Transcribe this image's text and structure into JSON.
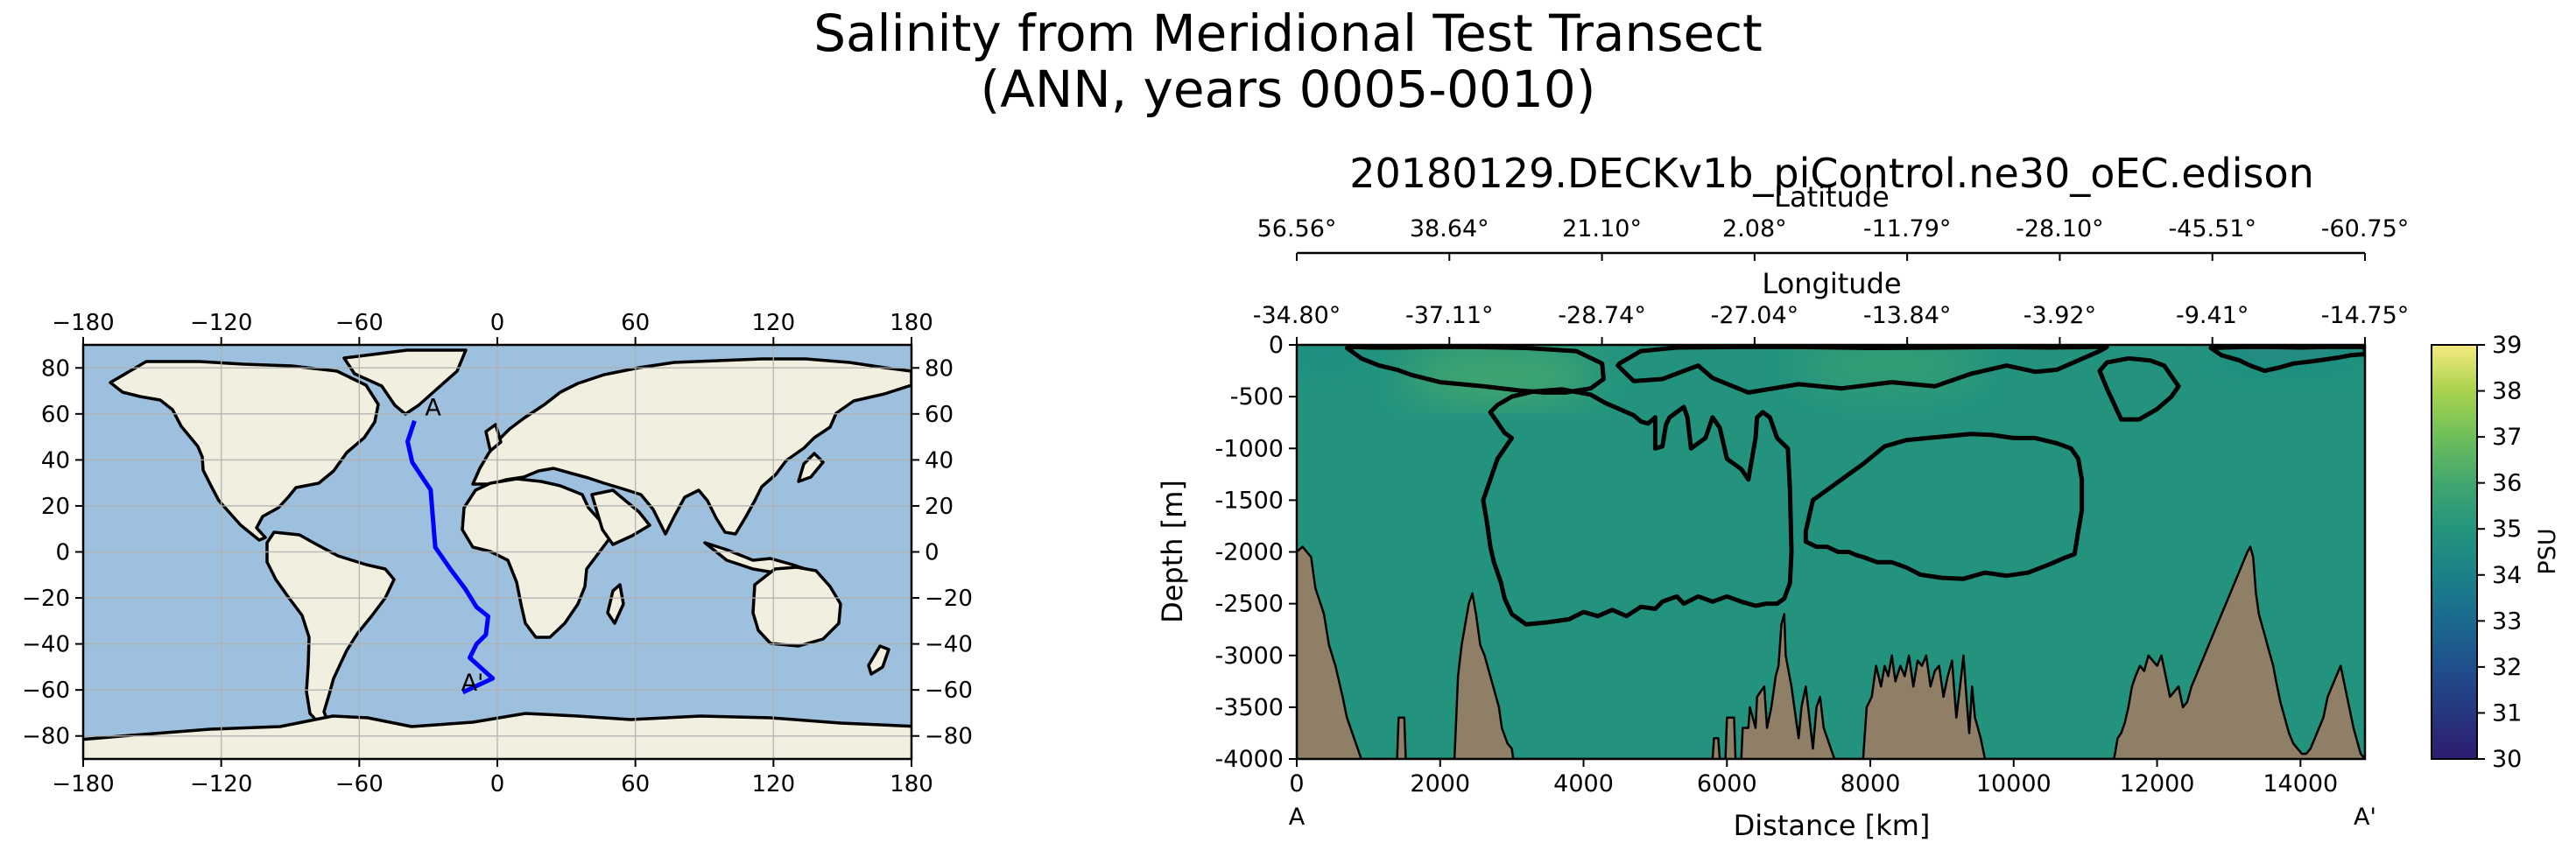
{
  "figure": {
    "title_line1": "Salinity from Meridional Test Transect",
    "title_line2": "(ANN, years 0005-0010)"
  },
  "chart_data": [
    {
      "type": "map",
      "title": "",
      "projection": "PlateCarree",
      "xlim": [
        -180,
        180
      ],
      "ylim": [
        -90,
        90
      ],
      "x_ticks": [
        "−180",
        "−120",
        "−60",
        "0",
        "60",
        "120",
        "180"
      ],
      "x_tick_values": [
        -180,
        -120,
        -60,
        0,
        60,
        120,
        180
      ],
      "y_ticks": [
        "−80",
        "−60",
        "−40",
        "−20",
        "0",
        "20",
        "40",
        "60",
        "80"
      ],
      "y_tick_values": [
        -80,
        -60,
        -40,
        -20,
        0,
        20,
        40,
        60,
        80
      ],
      "grid": true,
      "ocean_color": "#9cc0dd",
      "land_color": "#f1efdf",
      "coast_color": "#000000",
      "transect": {
        "color": "#0000ff",
        "start_label": "A",
        "end_label": "A'",
        "lon": [
          -36,
          -39,
          -37,
          -29,
          -27,
          -20,
          -14,
          -9,
          -4,
          -5,
          -9,
          -12,
          -2,
          -15
        ],
        "lat": [
          57,
          48,
          39,
          27,
          2,
          -8,
          -16,
          -24,
          -28,
          -36,
          -40,
          -46,
          -55,
          -61
        ]
      }
    },
    {
      "type": "heatmap",
      "title": "20180129.DECKv1b_piControl.ne30_oEC.edison",
      "xlabel": "Distance [km]",
      "ylabel": "Depth [m]",
      "xlim": [
        0,
        14900
      ],
      "ylim": [
        -4000,
        0
      ],
      "x_ticks": [
        0,
        2000,
        4000,
        6000,
        8000,
        10000,
        12000,
        14000
      ],
      "y_ticks": [
        0,
        -500,
        -1000,
        -1500,
        -2000,
        -2500,
        -3000,
        -3500,
        -4000
      ],
      "start_label": "A",
      "end_label": "A'",
      "top_axes": [
        {
          "label": "Latitude",
          "ticks": [
            "56.56°",
            "38.64°",
            "21.10°",
            "2.08°",
            "-11.79°",
            "-28.10°",
            "-45.51°",
            "-60.75°"
          ]
        },
        {
          "label": "Longitude",
          "ticks": [
            "-34.80°",
            "-37.11°",
            "-28.74°",
            "-27.04°",
            "-13.84°",
            "-3.92°",
            "-9.41°",
            "-14.75°"
          ]
        }
      ],
      "colorbar": {
        "label": "PSU",
        "min": 30,
        "max": 39,
        "ticks": [
          30,
          31,
          32,
          33,
          34,
          35,
          36,
          37,
          38,
          39
        ],
        "colors": [
          "#2d1c70",
          "#27367f",
          "#1f4f8c",
          "#1a6a8e",
          "#1c8189",
          "#24957d",
          "#42a66e",
          "#6ebf5b",
          "#a9d24d",
          "#f5ea7f"
        ]
      },
      "background_salinity": 34.9,
      "salinity_bands": [
        {
          "name": "upper-north-high",
          "value": 35.9,
          "x": [
            1500,
            4200
          ],
          "depth": [
            0,
            -600
          ]
        },
        {
          "name": "upper-south-high",
          "value": 35.7,
          "x": [
            7000,
            9500
          ],
          "depth": [
            0,
            -400
          ]
        },
        {
          "name": "surface-fresh-north",
          "value": 33.6,
          "x": [
            0,
            800
          ],
          "depth": [
            0,
            -60
          ]
        },
        {
          "name": "surface-fresh-south",
          "value": 33.2,
          "x": [
            12800,
            14900
          ],
          "depth": [
            0,
            -60
          ]
        }
      ],
      "contour_color": "#000000",
      "contour_level": 35.0,
      "bathymetry_color": "#8f7f66",
      "bathymetry": {
        "distance": [
          0,
          80,
          200,
          260,
          380,
          450,
          540,
          640,
          700,
          900,
          1400,
          1420,
          1500,
          1520,
          2200,
          2250,
          2300,
          2350,
          2400,
          2450,
          2500,
          2560,
          2620,
          2700,
          2760,
          2820,
          2860,
          2940,
          3000,
          3020,
          5800,
          5820,
          5880,
          5900,
          5980,
          6000,
          6100,
          6120,
          6200,
          6220,
          6300,
          6320,
          6400,
          6420,
          6520,
          6560,
          6620,
          6680,
          6720,
          6760,
          6800,
          6820,
          6900,
          6960,
          7000,
          7040,
          7100,
          7150,
          7200,
          7250,
          7300,
          7350,
          7400,
          7450,
          7500,
          7520,
          7900,
          7950,
          8020,
          8080,
          8150,
          8200,
          8250,
          8300,
          8350,
          8420,
          8480,
          8540,
          8600,
          8660,
          8720,
          8780,
          8840,
          8900,
          8960,
          9020,
          9080,
          9140,
          9200,
          9260,
          9300,
          9340,
          9380,
          9420,
          9460,
          9500,
          9540,
          9600,
          11400,
          11450,
          11500,
          11550,
          11600,
          11650,
          11700,
          11760,
          11820,
          11880,
          11940,
          12000,
          12060,
          12120,
          12180,
          12240,
          12300,
          12360,
          12420,
          12480,
          12540,
          12600,
          12660,
          12720,
          12780,
          12840,
          12900,
          12960,
          13020,
          13080,
          13140,
          13200,
          13260,
          13300,
          13340,
          13380,
          13420,
          13460,
          13500,
          13540,
          13580,
          13620,
          13660,
          13720,
          13780,
          13840,
          13900,
          13960,
          14020,
          14080,
          14140,
          14200,
          14260,
          14320,
          14380,
          14440,
          14500,
          14560,
          14620,
          14680,
          14740,
          14800,
          14840,
          14900
        ],
        "depth": [
          -2000,
          -1950,
          -2050,
          -2350,
          -2600,
          -2900,
          -3100,
          -3400,
          -3600,
          -4000,
          -4000,
          -3600,
          -3600,
          -4000,
          -4000,
          -3200,
          -2900,
          -2700,
          -2500,
          -2400,
          -2600,
          -2900,
          -3000,
          -3200,
          -3350,
          -3500,
          -3700,
          -3850,
          -3900,
          -4000,
          -4000,
          -3800,
          -3800,
          -4000,
          -4000,
          -3600,
          -3600,
          -4000,
          -4000,
          -3700,
          -3700,
          -3500,
          -3700,
          -3400,
          -3300,
          -3700,
          -3500,
          -3200,
          -3100,
          -2700,
          -2600,
          -3000,
          -3300,
          -3600,
          -3800,
          -3500,
          -3300,
          -3600,
          -3900,
          -3500,
          -3400,
          -3700,
          -3800,
          -3900,
          -4000,
          -4000,
          -4000,
          -3500,
          -3400,
          -3100,
          -3300,
          -3100,
          -3200,
          -3000,
          -3250,
          -3100,
          -3200,
          -3000,
          -3300,
          -3050,
          -3100,
          -3000,
          -3300,
          -3150,
          -3100,
          -3400,
          -3200,
          -3050,
          -3600,
          -3250,
          -3000,
          -3400,
          -3750,
          -3300,
          -3600,
          -3700,
          -3800,
          -4000,
          -4000,
          -3800,
          -3750,
          -3650,
          -3500,
          -3300,
          -3200,
          -3100,
          -3150,
          -3000,
          -3050,
          -3100,
          -3000,
          -3200,
          -3400,
          -3350,
          -3300,
          -3500,
          -3450,
          -3300,
          -3200,
          -3100,
          -3000,
          -2900,
          -2800,
          -2700,
          -2600,
          -2500,
          -2400,
          -2300,
          -2200,
          -2100,
          -2000,
          -1950,
          -2050,
          -2400,
          -2600,
          -2700,
          -2800,
          -2900,
          -3000,
          -3100,
          -3250,
          -3450,
          -3600,
          -3750,
          -3850,
          -3900,
          -3950,
          -3950,
          -3900,
          -3800,
          -3700,
          -3600,
          -3400,
          -3300,
          -3200,
          -3100,
          -3300,
          -3500,
          -3700,
          -3850,
          -3950,
          -4000
        ]
      },
      "contours": [
        {
          "name": "north-upper-cell",
          "x": [
            700,
            900,
            1150,
            1400,
            1600,
            2000,
            2600,
            3100,
            3450,
            3750,
            4100,
            4280,
            4260,
            3900,
            3200,
            2500,
            1900,
            1400,
            1050,
            800,
            700
          ],
          "depth": [
            -30,
            -130,
            -200,
            -240,
            -290,
            -360,
            -400,
            -440,
            -460,
            -460,
            -420,
            -330,
            -180,
            -60,
            -30,
            -20,
            -20,
            -25,
            -25,
            -20,
            -30
          ]
        },
        {
          "name": "central-shallow",
          "x": [
            4500,
            4480,
            4700,
            5100,
            5600,
            5800,
            6300,
            7000,
            7600,
            8300,
            8900,
            9400,
            9900,
            10300,
            10600,
            11000,
            11200,
            11300,
            11100,
            10500,
            9800,
            9000,
            8000,
            7000,
            6100,
            5300,
            4800,
            4500
          ],
          "depth": [
            -180,
            -200,
            -350,
            -330,
            -200,
            -320,
            -460,
            -380,
            -420,
            -360,
            -400,
            -280,
            -200,
            -260,
            -240,
            -120,
            -60,
            -20,
            -20,
            -25,
            -20,
            -25,
            -30,
            -20,
            -20,
            -25,
            -60,
            -180
          ]
        },
        {
          "name": "deep-main-tongue",
          "x": [
            4300,
            4500,
            4700,
            4800,
            4900,
            5000,
            5000,
            5100,
            5150,
            5200,
            5400,
            5450,
            5500,
            5700,
            5800,
            5900,
            6000,
            6200,
            6300,
            6400,
            6420,
            6500,
            6600,
            6700,
            6850,
            6880,
            6900,
            6880,
            6800,
            6700,
            6550,
            6400,
            6200,
            6000,
            5800,
            5600,
            5400,
            5300,
            5100,
            5000,
            4800,
            4600,
            4400,
            4200,
            4000,
            3800,
            3500,
            3200,
            3000,
            2900,
            2850,
            2800,
            2750,
            2700,
            2650,
            2600,
            2700,
            2800,
            2900,
            3000,
            2900,
            2800,
            2700,
            2800,
            3000,
            3300,
            3700,
            4100,
            4300
          ],
          "depth": [
            -560,
            -620,
            -680,
            -740,
            -760,
            -700,
            -1000,
            -980,
            -770,
            -700,
            -600,
            -700,
            -1000,
            -900,
            -700,
            -800,
            -1100,
            -1200,
            -1300,
            -900,
            -700,
            -650,
            -700,
            -900,
            -1000,
            -1400,
            -2000,
            -2300,
            -2450,
            -2500,
            -2500,
            -2520,
            -2480,
            -2430,
            -2480,
            -2430,
            -2500,
            -2430,
            -2480,
            -2550,
            -2530,
            -2620,
            -2560,
            -2620,
            -2580,
            -2650,
            -2680,
            -2700,
            -2600,
            -2450,
            -2300,
            -2200,
            -2100,
            -1950,
            -1700,
            -1500,
            -1300,
            -1100,
            -1000,
            -900,
            -850,
            -750,
            -650,
            -580,
            -500,
            -450,
            -430,
            -480,
            -560
          ]
        },
        {
          "name": "deep-south-cell",
          "x": [
            7200,
            7100,
            7100,
            7250,
            7400,
            7550,
            7700,
            7800,
            7900,
            8100,
            8300,
            8500,
            8700,
            9000,
            9300,
            9600,
            9900,
            10200,
            10500,
            10700,
            10850,
            10900,
            10950,
            10950,
            10900,
            10800,
            10600,
            10300,
            10000,
            9700,
            9400,
            9100,
            8800,
            8500,
            8200,
            7900,
            7600,
            7400,
            7200
          ],
          "depth": [
            -1500,
            -1800,
            -1900,
            -1950,
            -1950,
            -2000,
            -2000,
            -2030,
            -2050,
            -2100,
            -2100,
            -2150,
            -2220,
            -2250,
            -2260,
            -2200,
            -2230,
            -2200,
            -2120,
            -2060,
            -2020,
            -1800,
            -1600,
            -1300,
            -1100,
            -1000,
            -950,
            -900,
            -900,
            -870,
            -860,
            -880,
            -900,
            -920,
            -980,
            -1150,
            -1300,
            -1400,
            -1500
          ]
        },
        {
          "name": "south-upper-cell",
          "x": [
            11200,
            11300,
            11500,
            11750,
            12000,
            12200,
            12300,
            12100,
            11900,
            11600,
            11300,
            11200
          ],
          "depth": [
            -250,
            -420,
            -720,
            -720,
            -620,
            -500,
            -400,
            -200,
            -150,
            -130,
            -170,
            -250
          ]
        },
        {
          "name": "south-surface-lens",
          "x": [
            12750,
            12900,
            13150,
            13300,
            13500,
            13700,
            13900,
            14150,
            14350,
            14550,
            14700,
            14900,
            14900,
            14600,
            14300,
            14000,
            13600,
            13200,
            12950,
            12750
          ],
          "depth": [
            -30,
            -100,
            -150,
            -200,
            -250,
            -220,
            -180,
            -160,
            -140,
            -120,
            -100,
            -90,
            -20,
            -20,
            -20,
            -25,
            -20,
            -20,
            -25,
            -30
          ]
        }
      ]
    }
  ]
}
